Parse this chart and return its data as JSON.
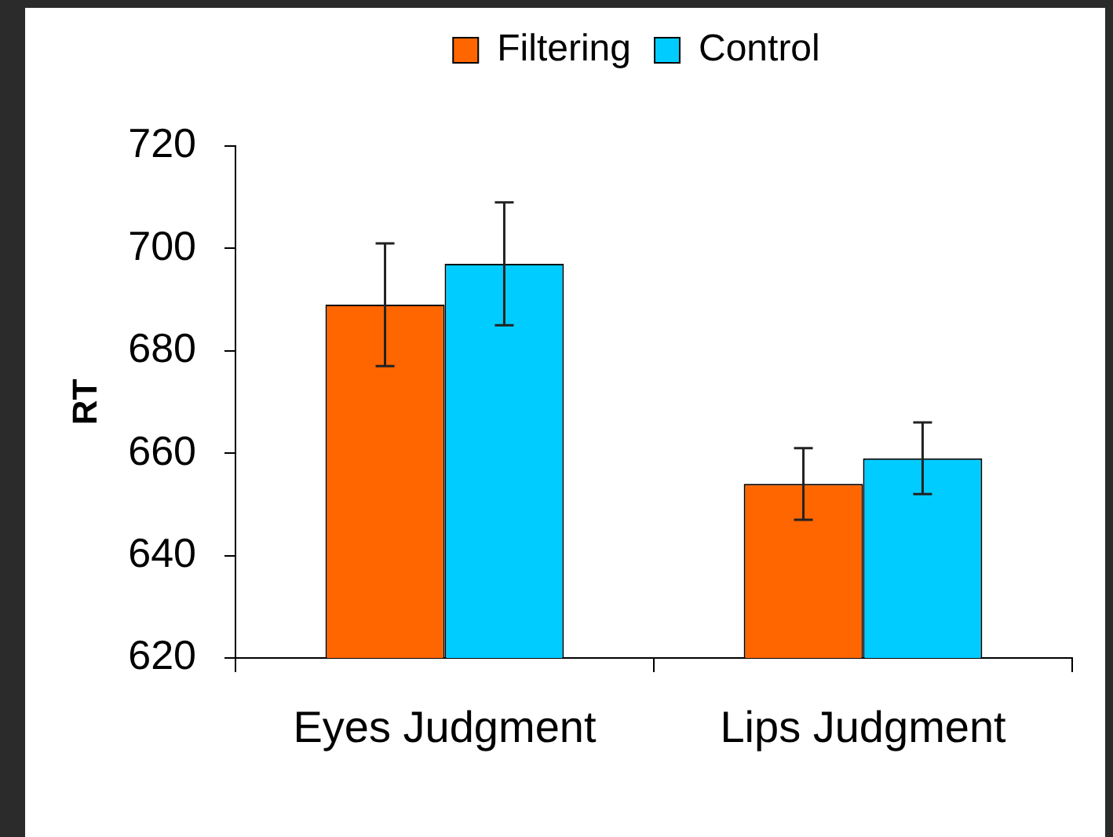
{
  "chart_data": {
    "type": "bar",
    "categories": [
      "Eyes Judgment",
      "Lips Judgment"
    ],
    "series": [
      {
        "name": "Filtering",
        "color": "#ff6600",
        "values": [
          689,
          654
        ],
        "errors": [
          12,
          7
        ]
      },
      {
        "name": "Control",
        "color": "#00ccff",
        "values": [
          697,
          659
        ],
        "errors": [
          12,
          7
        ]
      }
    ],
    "ylabel": "RT",
    "ylim": [
      620,
      720
    ],
    "yticks": [
      620,
      640,
      660,
      680,
      700,
      720
    ],
    "legend": "top",
    "grid": false
  }
}
